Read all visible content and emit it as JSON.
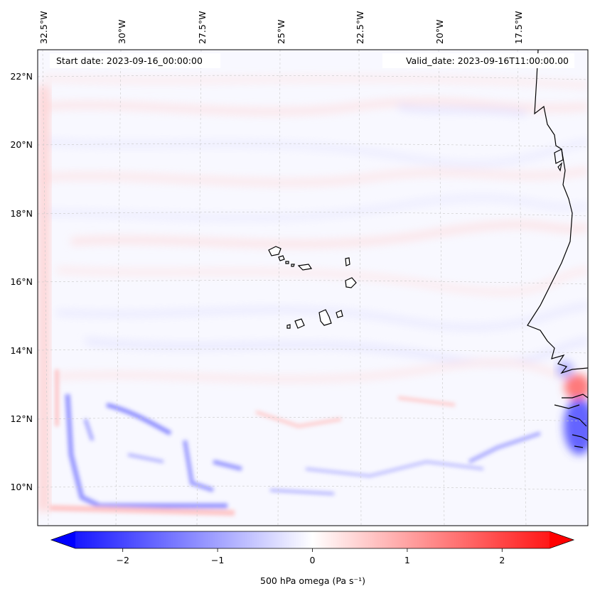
{
  "map": {
    "start_label": "Start date: 2023-09-16_00:00:00",
    "valid_label": "Valid_date: 2023-09-16T11:00:00.00",
    "lon_ticks": [
      "32.5°W",
      "30°W",
      "27.5°W",
      "25°W",
      "22.5°W",
      "20°W",
      "17.5°W"
    ],
    "lat_ticks": [
      "22°N",
      "20°N",
      "18°N",
      "16°N",
      "14°N",
      "12°N",
      "10°N"
    ],
    "field_name": "500 hPa omega"
  },
  "colorbar": {
    "label": "500 hPa omega (Pa s⁻¹)",
    "ticks": [
      "−2",
      "−1",
      "0",
      "1",
      "2"
    ],
    "tick_values": [
      -2,
      -1,
      0,
      1,
      2
    ],
    "range": [
      -2.5,
      2.5
    ],
    "colors": {
      "neg": "#0000ff",
      "zero": "#ffffff",
      "pos": "#ff0000"
    }
  }
}
